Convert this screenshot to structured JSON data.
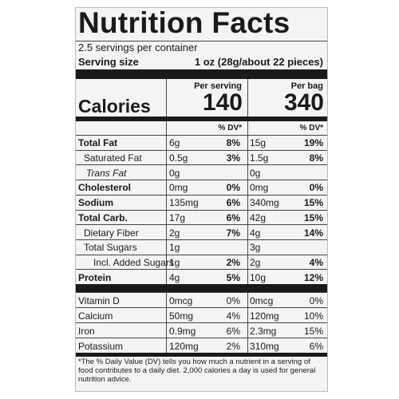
{
  "title": "Nutrition Facts",
  "servings": "2.5 servings per container",
  "serving_size": {
    "label": "Serving size",
    "value": "1 oz (28g/about 22 pieces)"
  },
  "columns": {
    "serving": "Per serving",
    "bag": "Per bag"
  },
  "calories": {
    "label": "Calories",
    "serving": "140",
    "bag": "340"
  },
  "dv_header": {
    "serving": "% DV*",
    "bag": "% DV*"
  },
  "nutrients": [
    {
      "name": "Total Fat",
      "style": "bold",
      "serving": {
        "amount": "6g",
        "dv": "8%"
      },
      "bag": {
        "amount": "15g",
        "dv": "19%"
      }
    },
    {
      "name": "Saturated Fat",
      "style": "sub",
      "serving": {
        "amount": "0.5g",
        "dv": "3%"
      },
      "bag": {
        "amount": "1.5g",
        "dv": "8%"
      }
    },
    {
      "name": "Trans Fat",
      "style": "sub-italic",
      "serving": {
        "amount": "0g"
      },
      "bag": {
        "amount": "0g"
      }
    },
    {
      "name": "Cholesterol",
      "style": "bold",
      "serving": {
        "amount": "0mg",
        "dv": "0%"
      },
      "bag": {
        "amount": "0mg",
        "dv": "0%"
      }
    },
    {
      "name": "Sodium",
      "style": "bold",
      "serving": {
        "amount": "135mg",
        "dv": "6%"
      },
      "bag": {
        "amount": "340mg",
        "dv": "15%"
      }
    },
    {
      "name": "Total Carb.",
      "style": "bold",
      "serving": {
        "amount": "17g",
        "dv": "6%"
      },
      "bag": {
        "amount": "42g",
        "dv": "15%"
      }
    },
    {
      "name": "Dietary Fiber",
      "style": "sub",
      "serving": {
        "amount": "2g",
        "dv": "7%"
      },
      "bag": {
        "amount": "4g",
        "dv": "14%"
      }
    },
    {
      "name": "Total Sugars",
      "style": "sub",
      "serving": {
        "amount": "1g"
      },
      "bag": {
        "amount": "3g"
      }
    },
    {
      "name": "Incl. Added Sugars",
      "style": "subsub",
      "serving": {
        "amount": "1g",
        "dv": "2%"
      },
      "bag": {
        "amount": "2g",
        "dv": "4%"
      }
    },
    {
      "name": "Protein",
      "style": "bold",
      "serving": {
        "amount": "4g",
        "dv": "5%"
      },
      "bag": {
        "amount": "10g",
        "dv": "12%"
      }
    }
  ],
  "vitamins_minerals": [
    {
      "name": "Vitamin D",
      "serving": {
        "amount": "0mcg",
        "dv": "0%"
      },
      "bag": {
        "amount": "0mcg",
        "dv": "0%"
      }
    },
    {
      "name": "Calcium",
      "serving": {
        "amount": "50mg",
        "dv": "4%"
      },
      "bag": {
        "amount": "120mg",
        "dv": "10%"
      }
    },
    {
      "name": "Iron",
      "serving": {
        "amount": "0.9mg",
        "dv": "6%"
      },
      "bag": {
        "amount": "2.3mg",
        "dv": "15%"
      }
    },
    {
      "name": "Potassium",
      "serving": {
        "amount": "120mg",
        "dv": "2%"
      },
      "bag": {
        "amount": "310mg",
        "dv": "6%"
      }
    }
  ],
  "footnote": "*The % Daily Value (DV) tells you how much a nutrient in a serving of food contributes to a daily diet. 2,000 calories a day is used for general nutrition advice."
}
